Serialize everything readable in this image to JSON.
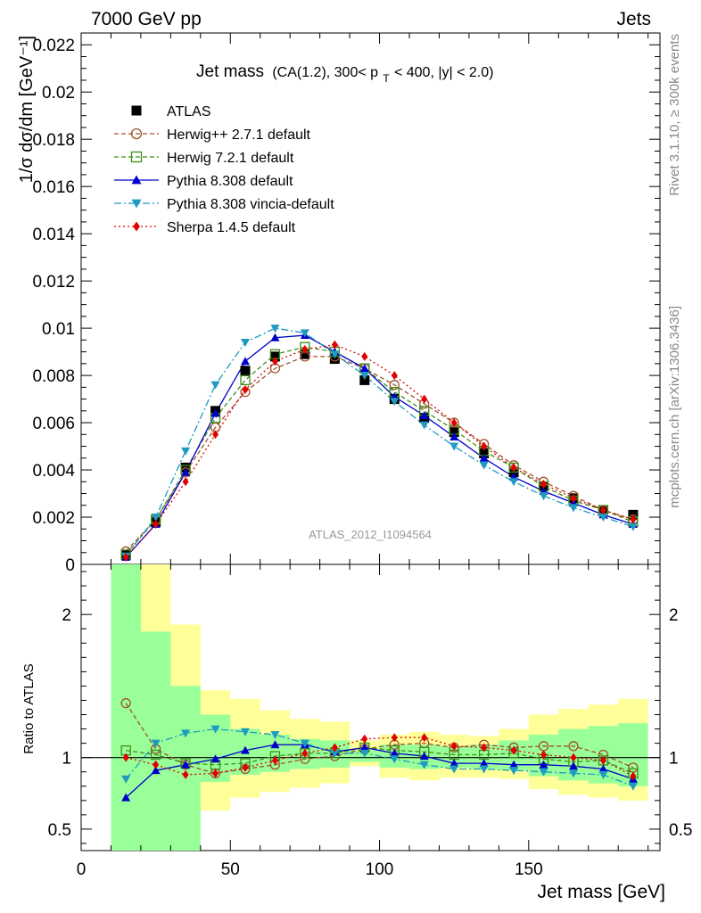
{
  "header": {
    "left": "7000 GeV pp",
    "right": "Jets"
  },
  "chart_data": {
    "type": "line",
    "title_main": "Jet mass",
    "title_detail_pre": "(CA(1.2), 300< p",
    "title_detail_sub": "T",
    "title_detail_post": " < 400, |y| < 2.0)",
    "ylabel_top": "1/σ dσ/dm [GeV⁻¹]",
    "ylabel_bottom": "Ratio to ATLAS",
    "xlabel": "Jet mass [GeV]",
    "watermark": "ATLAS_2012_I1094564",
    "side_label_top": "Rivet 3.1.10, ≥ 300k events",
    "side_label_bottom": "mcplots.cern.ch [arXiv:1306.3436]",
    "xlim": [
      0,
      194
    ],
    "ylim_top": [
      0,
      0.0225
    ],
    "ylim_bottom": [
      0.35,
      2.35
    ],
    "x_ticks": [
      0,
      50,
      100,
      150
    ],
    "x_tick_labels": [
      "0",
      "50",
      "100",
      "150"
    ],
    "y_ticks_top": [
      0,
      0.002,
      0.004,
      0.006,
      0.008,
      0.01,
      0.012,
      0.014,
      0.016,
      0.018,
      0.02,
      0.022
    ],
    "y_tick_labels_top": [
      "0",
      "0.002",
      "0.004",
      "0.006",
      "0.008",
      "0.01",
      "0.012",
      "0.014",
      "0.016",
      "0.018",
      "0.02",
      "0.022"
    ],
    "y_ticks_bottom": [
      0.5,
      1,
      2
    ],
    "y_tick_labels_bottom": [
      "0.5",
      "1",
      "2"
    ],
    "x": [
      15,
      25,
      35,
      45,
      55,
      65,
      75,
      85,
      95,
      105,
      115,
      125,
      135,
      145,
      155,
      165,
      175,
      185
    ],
    "bin_edges": [
      10,
      20,
      30,
      40,
      50,
      60,
      70,
      80,
      90,
      100,
      110,
      120,
      130,
      140,
      150,
      160,
      170,
      180,
      190
    ],
    "ratio_band_yellow": [
      [
        0.35,
        2.35
      ],
      [
        0.35,
        2.35
      ],
      [
        0.35,
        1.93
      ],
      [
        0.63,
        1.47
      ],
      [
        0.72,
        1.41
      ],
      [
        0.76,
        1.33
      ],
      [
        0.79,
        1.27
      ],
      [
        0.82,
        1.25
      ],
      [
        0.94,
        1.12
      ],
      [
        0.86,
        1.16
      ],
      [
        0.84,
        1.18
      ],
      [
        0.86,
        1.16
      ],
      [
        0.86,
        1.15
      ],
      [
        0.85,
        1.2
      ],
      [
        0.78,
        1.3
      ],
      [
        0.74,
        1.34
      ],
      [
        0.72,
        1.37
      ],
      [
        0.7,
        1.41
      ]
    ],
    "ratio_band_green": [
      [
        0.35,
        2.35
      ],
      [
        0.35,
        1.88
      ],
      [
        0.35,
        1.5
      ],
      [
        0.83,
        1.3
      ],
      [
        0.88,
        1.2
      ],
      [
        0.9,
        1.16
      ],
      [
        0.92,
        1.13
      ],
      [
        0.93,
        1.12
      ],
      [
        0.97,
        1.05
      ],
      [
        0.93,
        1.09
      ],
      [
        0.92,
        1.09
      ],
      [
        0.93,
        1.08
      ],
      [
        0.92,
        1.09
      ],
      [
        0.91,
        1.12
      ],
      [
        0.87,
        1.16
      ],
      [
        0.84,
        1.2
      ],
      [
        0.82,
        1.22
      ],
      [
        0.8,
        1.24
      ]
    ],
    "series": [
      {
        "name": "ATLAS",
        "type": "data",
        "color": "#000000",
        "marker": "square-filled",
        "values": [
          0.0004,
          0.0018,
          0.0041,
          0.0065,
          0.0082,
          0.0088,
          0.0089,
          0.0087,
          0.0078,
          0.007,
          0.0062,
          0.0056,
          0.0047,
          0.0039,
          0.0033,
          0.0028,
          0.0023,
          0.0021
        ]
      },
      {
        "name": "Herwig++ 2.7.1 default",
        "color": "#a0522d",
        "marker": "circle-open",
        "dash": "5,3",
        "values": [
          0.00055,
          0.0019,
          0.0039,
          0.0058,
          0.0073,
          0.0083,
          0.0088,
          0.0088,
          0.0083,
          0.0076,
          0.0068,
          0.006,
          0.0051,
          0.0042,
          0.0035,
          0.0029,
          0.0023,
          0.0019
        ],
        "ratio": [
          1.38,
          1.06,
          0.95,
          0.89,
          0.92,
          0.95,
          0.99,
          1.01,
          1.06,
          1.09,
          1.1,
          1.07,
          1.09,
          1.07,
          1.08,
          1.08,
          1.02,
          0.93
        ]
      },
      {
        "name": "Herwig 7.2.1 default",
        "color": "#3e8e1a",
        "marker": "square-open",
        "dash": "5,3",
        "values": [
          0.00042,
          0.0019,
          0.004,
          0.0062,
          0.0078,
          0.0089,
          0.0092,
          0.009,
          0.0083,
          0.0073,
          0.0065,
          0.0057,
          0.0048,
          0.0041,
          0.0033,
          0.0027,
          0.0023,
          0.0018
        ],
        "ratio": [
          1.05,
          1.02,
          0.96,
          0.95,
          0.96,
          1.01,
          1.03,
          1.03,
          1.07,
          1.05,
          1.04,
          1.02,
          1.02,
          1.03,
          0.99,
          0.97,
          0.98,
          0.89
        ]
      },
      {
        "name": "Pythia 8.308 default",
        "color": "#0000cc",
        "marker": "triangle-up-filled",
        "dash": "",
        "values": [
          0.0003,
          0.0017,
          0.0039,
          0.0064,
          0.0086,
          0.0096,
          0.0097,
          0.009,
          0.0083,
          0.0071,
          0.0063,
          0.0054,
          0.0045,
          0.0037,
          0.0031,
          0.0026,
          0.0021,
          0.0017
        ],
        "ratio": [
          0.72,
          0.91,
          0.95,
          0.99,
          1.05,
          1.09,
          1.09,
          1.04,
          1.07,
          1.03,
          1.01,
          0.96,
          0.96,
          0.95,
          0.95,
          0.94,
          0.92,
          0.85
        ]
      },
      {
        "name": "Pythia 8.308 vincia-default",
        "color": "#1f9bc2",
        "marker": "triangle-down-filled",
        "dash": "8,3,2,3",
        "values": [
          0.00035,
          0.002,
          0.0048,
          0.0076,
          0.0094,
          0.01,
          0.0098,
          0.0089,
          0.008,
          0.0069,
          0.0059,
          0.005,
          0.0042,
          0.0035,
          0.0029,
          0.0024,
          0.002,
          0.0016
        ],
        "ratio": [
          0.85,
          1.1,
          1.17,
          1.2,
          1.18,
          1.16,
          1.1,
          1.03,
          1.03,
          0.99,
          0.95,
          0.92,
          0.92,
          0.91,
          0.9,
          0.89,
          0.88,
          0.8
        ]
      },
      {
        "name": "Sherpa 1.4.5 default",
        "color": "#e00000",
        "marker": "diamond-filled",
        "dash": "2,3",
        "values": [
          0.0003,
          0.0017,
          0.0035,
          0.0055,
          0.0074,
          0.0086,
          0.0091,
          0.0093,
          0.0088,
          0.008,
          0.007,
          0.006,
          0.005,
          0.0041,
          0.0034,
          0.0028,
          0.0023,
          0.0019
        ],
        "ratio": [
          1.0,
          0.95,
          0.88,
          0.89,
          0.93,
          0.98,
          1.03,
          1.07,
          1.13,
          1.14,
          1.14,
          1.08,
          1.07,
          1.05,
          1.02,
          1.0,
          0.98,
          0.87
        ]
      }
    ]
  }
}
